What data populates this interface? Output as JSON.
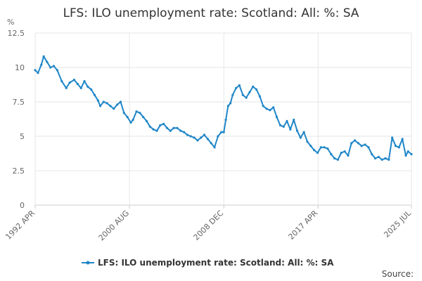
{
  "chart_data": {
    "type": "line",
    "title": "LFS: ILO unemployment rate: Scotland: All: %: SA",
    "ylabel": "%",
    "xlabel": "",
    "ylim": [
      0,
      12.5
    ],
    "y_ticks": [
      "0",
      "2.5",
      "5",
      "7.5",
      "10",
      "12.5"
    ],
    "x_range": [
      1992.25,
      2025.5
    ],
    "x_ticks": [
      {
        "label": "1992 APR",
        "x": 1992.25
      },
      {
        "label": "2000 AUG",
        "x": 2000.58
      },
      {
        "label": "2008 DEC",
        "x": 2008.92
      },
      {
        "label": "2017 APR",
        "x": 2017.25
      },
      {
        "label": "2025 JUL",
        "x": 2025.5
      }
    ],
    "grid": true,
    "color": "#1f86c8",
    "legend": "bottom-center",
    "series": [
      {
        "name": "LFS: ILO unemployment rate: Scotland: All: %: SA",
        "x": [
          1992.25,
          1992.5,
          1992.8,
          1993.0,
          1993.3,
          1993.6,
          1993.9,
          1994.2,
          1994.6,
          1995.0,
          1995.3,
          1995.7,
          1996.0,
          1996.3,
          1996.6,
          1996.9,
          1997.2,
          1997.5,
          1997.8,
          1998.0,
          1998.3,
          1998.6,
          1998.9,
          1999.2,
          1999.5,
          1999.8,
          2000.1,
          2000.4,
          2000.7,
          2000.9,
          2001.2,
          2001.5,
          2001.8,
          2002.1,
          2002.4,
          2002.7,
          2003.0,
          2003.3,
          2003.6,
          2003.9,
          2004.2,
          2004.5,
          2004.8,
          2005.1,
          2005.4,
          2005.7,
          2006.0,
          2006.3,
          2006.6,
          2006.9,
          2007.2,
          2007.5,
          2007.8,
          2008.1,
          2008.4,
          2008.7,
          2008.92,
          2009.1,
          2009.3,
          2009.5,
          2009.7,
          2010.0,
          2010.3,
          2010.6,
          2010.9,
          2011.2,
          2011.5,
          2011.8,
          2012.1,
          2012.4,
          2012.7,
          2013.0,
          2013.3,
          2013.6,
          2013.9,
          2014.2,
          2014.5,
          2014.8,
          2015.1,
          2015.4,
          2015.7,
          2016.0,
          2016.3,
          2016.6,
          2016.9,
          2017.2,
          2017.5,
          2017.8,
          2018.1,
          2018.4,
          2018.7,
          2019.0,
          2019.3,
          2019.6,
          2019.9,
          2020.2,
          2020.5,
          2020.8,
          2021.1,
          2021.4,
          2021.7,
          2022.0,
          2022.3,
          2022.6,
          2022.9,
          2023.2,
          2023.5,
          2023.8,
          2024.1,
          2024.4,
          2024.7,
          2025.0,
          2025.2,
          2025.5
        ],
        "values": [
          9.8,
          9.6,
          10.2,
          10.8,
          10.4,
          10.0,
          10.1,
          9.8,
          9.0,
          8.5,
          8.9,
          9.1,
          8.8,
          8.5,
          9.0,
          8.6,
          8.4,
          8.0,
          7.6,
          7.2,
          7.5,
          7.4,
          7.2,
          7.0,
          7.3,
          7.5,
          6.7,
          6.4,
          6.0,
          6.2,
          6.8,
          6.7,
          6.4,
          6.1,
          5.7,
          5.5,
          5.4,
          5.8,
          5.9,
          5.6,
          5.4,
          5.6,
          5.6,
          5.4,
          5.3,
          5.1,
          5.0,
          4.9,
          4.7,
          4.9,
          5.1,
          4.8,
          4.5,
          4.2,
          5.0,
          5.3,
          5.3,
          6.2,
          7.2,
          7.4,
          8.0,
          8.5,
          8.7,
          8.0,
          7.8,
          8.2,
          8.6,
          8.4,
          7.9,
          7.2,
          7.0,
          6.9,
          7.1,
          6.4,
          5.8,
          5.7,
          6.1,
          5.5,
          6.2,
          5.4,
          4.9,
          5.3,
          4.6,
          4.3,
          4.0,
          3.8,
          4.2,
          4.2,
          4.1,
          3.7,
          3.4,
          3.3,
          3.8,
          3.9,
          3.6,
          4.5,
          4.7,
          4.5,
          4.3,
          4.4,
          4.2,
          3.7,
          3.4,
          3.5,
          3.3,
          3.4,
          3.3,
          4.9,
          4.3,
          4.2,
          4.8,
          3.6,
          3.9,
          3.7
        ]
      }
    ]
  },
  "legend_label": "LFS: ILO unemployment rate: Scotland: All: %: SA",
  "source_label": "Source:"
}
